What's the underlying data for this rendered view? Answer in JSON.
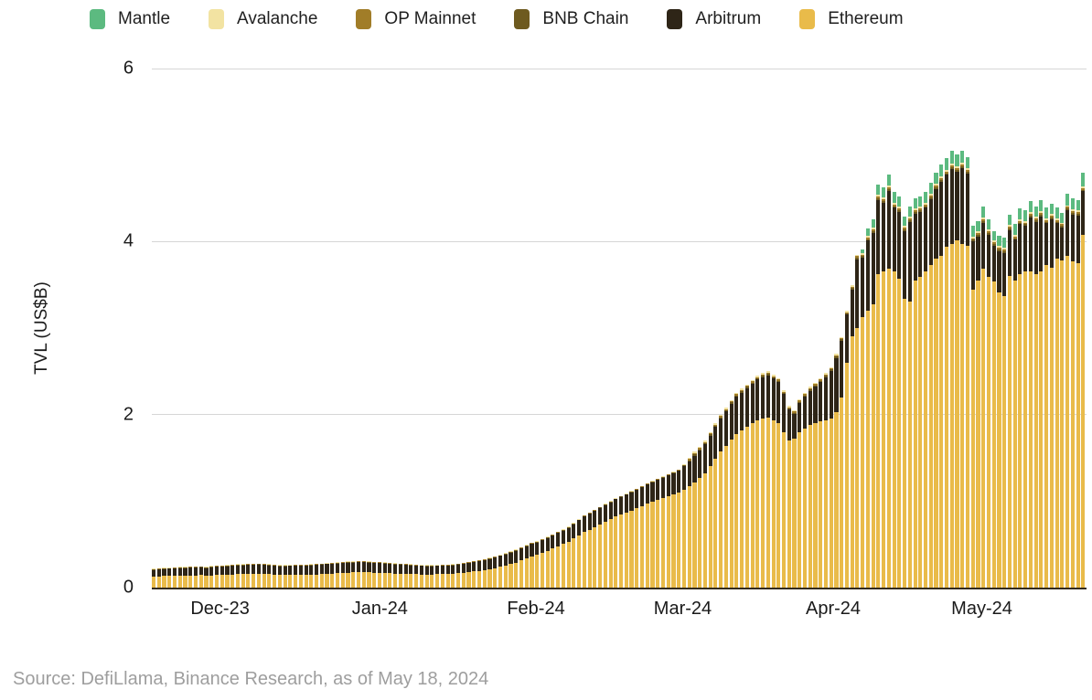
{
  "legend": {
    "items": [
      {
        "label": "Mantle",
        "color": "#5cba80"
      },
      {
        "label": "Avalanche",
        "color": "#f2e3a2"
      },
      {
        "label": "OP Mainnet",
        "color": "#a17d28"
      },
      {
        "label": "BNB Chain",
        "color": "#6e5a1f"
      },
      {
        "label": "Arbitrum",
        "color": "#2e2517"
      },
      {
        "label": "Ethereum",
        "color": "#e9bb4a"
      }
    ]
  },
  "source_note": "Source: DefiLlama, Binance Research, as of May 18, 2024",
  "chart_data": {
    "type": "bar",
    "stacked": true,
    "title": "",
    "xlabel": "",
    "ylabel": "TVL (US$B)",
    "ylim": [
      0,
      6
    ],
    "yticks": [
      0,
      2,
      4,
      6
    ],
    "grid": "horizontal",
    "legend_position": "top",
    "x_axis": {
      "granularity": "daily",
      "start": "2023-11-20",
      "end": "2024-05-18",
      "tick_labels": [
        "Dec-23",
        "Jan-24",
        "Feb-24",
        "Mar-24",
        "Apr-24",
        "May-24"
      ]
    },
    "stack_order_bottom_to_top": [
      "Ethereum",
      "Arbitrum",
      "BNB Chain",
      "OP Mainnet",
      "Avalanche",
      "Mantle"
    ],
    "series": [
      {
        "name": "Ethereum",
        "color": "#e9bb4a",
        "values": [
          0.13,
          0.132,
          0.134,
          0.136,
          0.138,
          0.14,
          0.14,
          0.141,
          0.142,
          0.143,
          0.138,
          0.14,
          0.143,
          0.146,
          0.149,
          0.152,
          0.155,
          0.156,
          0.158,
          0.159,
          0.16,
          0.157,
          0.155,
          0.152,
          0.15,
          0.15,
          0.15,
          0.15,
          0.15,
          0.15,
          0.15,
          0.153,
          0.157,
          0.16,
          0.163,
          0.167,
          0.17,
          0.172,
          0.175,
          0.177,
          0.18,
          0.175,
          0.17,
          0.168,
          0.166,
          0.164,
          0.162,
          0.16,
          0.158,
          0.156,
          0.154,
          0.152,
          0.15,
          0.152,
          0.154,
          0.156,
          0.158,
          0.16,
          0.167,
          0.173,
          0.18,
          0.187,
          0.193,
          0.2,
          0.213,
          0.227,
          0.24,
          0.257,
          0.273,
          0.29,
          0.312,
          0.335,
          0.357,
          0.38,
          0.403,
          0.427,
          0.45,
          0.477,
          0.503,
          0.53,
          0.567,
          0.603,
          0.64,
          0.67,
          0.7,
          0.73,
          0.76,
          0.79,
          0.82,
          0.843,
          0.867,
          0.89,
          0.917,
          0.943,
          0.97,
          0.993,
          1.017,
          1.04,
          1.06,
          1.08,
          1.1,
          1.135,
          1.17,
          1.22,
          1.27,
          1.32,
          1.4,
          1.49,
          1.57,
          1.64,
          1.71,
          1.78,
          1.82,
          1.86,
          1.9,
          1.93,
          1.95,
          1.97,
          1.93,
          1.9,
          1.8,
          1.7,
          1.72,
          1.8,
          1.84,
          1.88,
          1.9,
          1.92,
          1.93,
          1.95,
          2.03,
          2.2,
          2.6,
          2.9,
          3.0,
          3.13,
          3.2,
          3.27,
          3.62,
          3.66,
          3.69,
          3.66,
          3.57,
          3.34,
          3.31,
          3.55,
          3.59,
          3.66,
          3.73,
          3.8,
          3.83,
          3.94,
          3.97,
          4.01,
          3.97,
          3.95,
          3.44,
          3.55,
          3.69,
          3.59,
          3.54,
          3.41,
          3.37,
          3.6,
          3.55,
          3.62,
          3.66,
          3.66,
          3.62,
          3.65,
          3.73,
          3.7,
          3.8,
          3.78,
          3.83,
          3.77,
          3.75,
          4.08
        ]
      },
      {
        "name": "Arbitrum",
        "color": "#2e2517",
        "values": [
          0.075,
          0.078,
          0.081,
          0.081,
          0.083,
          0.085,
          0.087,
          0.088,
          0.089,
          0.09,
          0.087,
          0.095,
          0.096,
          0.097,
          0.098,
          0.099,
          0.1,
          0.102,
          0.102,
          0.104,
          0.105,
          0.103,
          0.1,
          0.098,
          0.095,
          0.097,
          0.099,
          0.101,
          0.102,
          0.103,
          0.105,
          0.107,
          0.108,
          0.11,
          0.112,
          0.113,
          0.115,
          0.115,
          0.115,
          0.116,
          0.115,
          0.115,
          0.115,
          0.113,
          0.111,
          0.109,
          0.107,
          0.105,
          0.103,
          0.101,
          0.099,
          0.097,
          0.095,
          0.095,
          0.095,
          0.095,
          0.095,
          0.095,
          0.098,
          0.102,
          0.105,
          0.108,
          0.112,
          0.115,
          0.118,
          0.121,
          0.125,
          0.128,
          0.132,
          0.135,
          0.14,
          0.145,
          0.148,
          0.14,
          0.144,
          0.146,
          0.15,
          0.153,
          0.157,
          0.16,
          0.166,
          0.174,
          0.18,
          0.183,
          0.187,
          0.19,
          0.193,
          0.197,
          0.2,
          0.204,
          0.206,
          0.21,
          0.213,
          0.217,
          0.22,
          0.224,
          0.226,
          0.23,
          0.237,
          0.243,
          0.25,
          0.275,
          0.285,
          0.305,
          0.315,
          0.335,
          0.355,
          0.365,
          0.385,
          0.395,
          0.415,
          0.425,
          0.435,
          0.445,
          0.455,
          0.475,
          0.485,
          0.485,
          0.485,
          0.475,
          0.435,
          0.355,
          0.285,
          0.335,
          0.365,
          0.395,
          0.425,
          0.455,
          0.505,
          0.555,
          0.625,
          0.655,
          0.555,
          0.54,
          0.79,
          0.68,
          0.81,
          0.83,
          0.86,
          0.79,
          0.9,
          0.73,
          0.77,
          0.78,
          0.92,
          0.77,
          0.75,
          0.73,
          0.76,
          0.81,
          0.86,
          0.83,
          0.87,
          0.8,
          0.88,
          0.84,
          0.56,
          0.51,
          0.53,
          0.49,
          0.41,
          0.48,
          0.5,
          0.53,
          0.47,
          0.58,
          0.52,
          0.62,
          0.61,
          0.64,
          0.48,
          0.56,
          0.41,
          0.38,
          0.53,
          0.54,
          0.55,
          0.5
        ]
      },
      {
        "name": "BNB Chain",
        "color": "#6e5a1f",
        "values": [
          0.005,
          0.005,
          0.005,
          0.005,
          0.005,
          0.005,
          0.005,
          0.005,
          0.005,
          0.005,
          0.005,
          0.005,
          0.005,
          0.005,
          0.005,
          0.005,
          0.005,
          0.005,
          0.005,
          0.005,
          0.005,
          0.005,
          0.005,
          0.005,
          0.005,
          0.005,
          0.005,
          0.005,
          0.005,
          0.005,
          0.005,
          0.005,
          0.005,
          0.005,
          0.005,
          0.005,
          0.005,
          0.005,
          0.005,
          0.005,
          0.005,
          0.005,
          0.005,
          0.005,
          0.005,
          0.005,
          0.005,
          0.005,
          0.005,
          0.005,
          0.005,
          0.005,
          0.005,
          0.005,
          0.005,
          0.005,
          0.005,
          0.005,
          0.005,
          0.005,
          0.005,
          0.005,
          0.005,
          0.005,
          0.005,
          0.005,
          0.005,
          0.005,
          0.005,
          0.005,
          0.005,
          0.005,
          0.005,
          0.005,
          0.005,
          0.005,
          0.005,
          0.005,
          0.005,
          0.005,
          0.005,
          0.005,
          0.005,
          0.005,
          0.005,
          0.005,
          0.005,
          0.005,
          0.005,
          0.005,
          0.005,
          0.005,
          0.005,
          0.005,
          0.005,
          0.005,
          0.005,
          0.005,
          0.005,
          0.005,
          0.005,
          0.005,
          0.015,
          0.015,
          0.015,
          0.015,
          0.015,
          0.015,
          0.015,
          0.015,
          0.015,
          0.015,
          0.015,
          0.015,
          0.015,
          0.015,
          0.015,
          0.015,
          0.015,
          0.015,
          0.015,
          0.015,
          0.015,
          0.015,
          0.015,
          0.015,
          0.015,
          0.015,
          0.015,
          0.015,
          0.015,
          0.015,
          0.015,
          0.02,
          0.02,
          0.02,
          0.02,
          0.02,
          0.02,
          0.02,
          0.02,
          0.02,
          0.02,
          0.02,
          0.02,
          0.02,
          0.02,
          0.02,
          0.02,
          0.02,
          0.02,
          0.02,
          0.02,
          0.02,
          0.02,
          0.02,
          0.02,
          0.02,
          0.02,
          0.02,
          0.02,
          0.02,
          0.02,
          0.02,
          0.02,
          0.02,
          0.02,
          0.02,
          0.02,
          0.02,
          0.02,
          0.02,
          0.02,
          0.02,
          0.02,
          0.02,
          0.02,
          0.02
        ]
      },
      {
        "name": "OP Mainnet",
        "color": "#a17d28",
        "values": [
          0.005,
          0.005,
          0.005,
          0.005,
          0.005,
          0.005,
          0.005,
          0.005,
          0.005,
          0.005,
          0.005,
          0.005,
          0.005,
          0.005,
          0.005,
          0.005,
          0.005,
          0.005,
          0.005,
          0.005,
          0.005,
          0.005,
          0.005,
          0.005,
          0.005,
          0.005,
          0.005,
          0.005,
          0.005,
          0.005,
          0.005,
          0.005,
          0.005,
          0.005,
          0.005,
          0.005,
          0.005,
          0.005,
          0.005,
          0.005,
          0.005,
          0.005,
          0.005,
          0.005,
          0.005,
          0.005,
          0.005,
          0.005,
          0.005,
          0.005,
          0.005,
          0.005,
          0.005,
          0.005,
          0.005,
          0.005,
          0.005,
          0.005,
          0.005,
          0.005,
          0.005,
          0.005,
          0.005,
          0.005,
          0.005,
          0.005,
          0.005,
          0.005,
          0.005,
          0.005,
          0.005,
          0.005,
          0.005,
          0.005,
          0.005,
          0.005,
          0.005,
          0.005,
          0.005,
          0.005,
          0.005,
          0.005,
          0.005,
          0.005,
          0.005,
          0.005,
          0.005,
          0.005,
          0.005,
          0.005,
          0.005,
          0.005,
          0.005,
          0.005,
          0.005,
          0.005,
          0.005,
          0.005,
          0.005,
          0.005,
          0.005,
          0.005,
          0.015,
          0.015,
          0.015,
          0.015,
          0.015,
          0.015,
          0.015,
          0.015,
          0.015,
          0.015,
          0.015,
          0.015,
          0.015,
          0.015,
          0.015,
          0.015,
          0.015,
          0.015,
          0.015,
          0.015,
          0.015,
          0.015,
          0.015,
          0.015,
          0.015,
          0.015,
          0.015,
          0.015,
          0.015,
          0.015,
          0.015,
          0.02,
          0.02,
          0.02,
          0.02,
          0.02,
          0.02,
          0.02,
          0.02,
          0.02,
          0.02,
          0.02,
          0.02,
          0.02,
          0.02,
          0.02,
          0.02,
          0.02,
          0.02,
          0.02,
          0.02,
          0.02,
          0.02,
          0.02,
          0.02,
          0.02,
          0.02,
          0.02,
          0.02,
          0.02,
          0.02,
          0.02,
          0.02,
          0.02,
          0.02,
          0.02,
          0.02,
          0.02,
          0.02,
          0.02,
          0.02,
          0.02,
          0.02,
          0.02,
          0.02,
          0.02
        ]
      },
      {
        "name": "Avalanche",
        "color": "#f2e3a2",
        "values": [
          0.005,
          0.005,
          0.005,
          0.005,
          0.005,
          0.005,
          0.005,
          0.005,
          0.005,
          0.005,
          0.005,
          0.005,
          0.005,
          0.005,
          0.005,
          0.005,
          0.005,
          0.005,
          0.005,
          0.005,
          0.005,
          0.005,
          0.005,
          0.005,
          0.005,
          0.005,
          0.005,
          0.005,
          0.005,
          0.005,
          0.005,
          0.005,
          0.005,
          0.005,
          0.005,
          0.005,
          0.005,
          0.005,
          0.005,
          0.005,
          0.005,
          0.005,
          0.005,
          0.005,
          0.005,
          0.005,
          0.005,
          0.005,
          0.005,
          0.005,
          0.005,
          0.005,
          0.005,
          0.005,
          0.005,
          0.005,
          0.005,
          0.005,
          0.005,
          0.005,
          0.005,
          0.005,
          0.005,
          0.005,
          0.005,
          0.005,
          0.005,
          0.005,
          0.005,
          0.005,
          0.005,
          0.005,
          0.005,
          0.005,
          0.005,
          0.005,
          0.005,
          0.005,
          0.005,
          0.005,
          0.005,
          0.005,
          0.005,
          0.005,
          0.005,
          0.005,
          0.005,
          0.005,
          0.005,
          0.005,
          0.005,
          0.005,
          0.005,
          0.005,
          0.005,
          0.005,
          0.005,
          0.005,
          0.005,
          0.005,
          0.005,
          0.005,
          0.015,
          0.015,
          0.015,
          0.015,
          0.015,
          0.015,
          0.015,
          0.015,
          0.015,
          0.015,
          0.015,
          0.015,
          0.015,
          0.015,
          0.015,
          0.015,
          0.015,
          0.015,
          0.015,
          0.015,
          0.015,
          0.015,
          0.015,
          0.015,
          0.015,
          0.015,
          0.015,
          0.015,
          0.015,
          0.015,
          0.015,
          0.02,
          0.02,
          0.02,
          0.02,
          0.02,
          0.02,
          0.02,
          0.02,
          0.02,
          0.02,
          0.02,
          0.02,
          0.02,
          0.02,
          0.02,
          0.02,
          0.02,
          0.02,
          0.02,
          0.02,
          0.02,
          0.02,
          0.02,
          0.02,
          0.02,
          0.02,
          0.02,
          0.02,
          0.02,
          0.02,
          0.02,
          0.02,
          0.02,
          0.02,
          0.02,
          0.02,
          0.02,
          0.02,
          0.02,
          0.02,
          0.02,
          0.02,
          0.02,
          0.02,
          0.02
        ]
      },
      {
        "name": "Mantle",
        "color": "#5cba80",
        "values": [
          0,
          0,
          0,
          0,
          0,
          0,
          0,
          0,
          0,
          0,
          0,
          0,
          0,
          0,
          0,
          0,
          0,
          0,
          0,
          0,
          0,
          0,
          0,
          0,
          0,
          0,
          0,
          0,
          0,
          0,
          0,
          0,
          0,
          0,
          0,
          0,
          0,
          0,
          0,
          0,
          0,
          0,
          0,
          0,
          0,
          0,
          0,
          0,
          0,
          0,
          0,
          0,
          0,
          0,
          0,
          0,
          0,
          0,
          0,
          0,
          0,
          0,
          0,
          0,
          0,
          0,
          0,
          0,
          0,
          0,
          0,
          0,
          0,
          0,
          0,
          0,
          0,
          0,
          0,
          0,
          0,
          0,
          0,
          0,
          0,
          0,
          0,
          0,
          0,
          0,
          0,
          0,
          0,
          0,
          0,
          0,
          0,
          0,
          0,
          0,
          0,
          0,
          0,
          0,
          0,
          0,
          0,
          0,
          0,
          0,
          0,
          0,
          0,
          0,
          0,
          0,
          0,
          0,
          0,
          0,
          0,
          0,
          0,
          0,
          0,
          0,
          0,
          0,
          0,
          0,
          0,
          0,
          0,
          0,
          0,
          0.04,
          0.08,
          0.1,
          0.12,
          0.12,
          0.13,
          0.12,
          0.12,
          0.11,
          0.12,
          0.12,
          0.12,
          0.12,
          0.13,
          0.13,
          0.14,
          0.14,
          0.15,
          0.14,
          0.14,
          0.13,
          0.12,
          0.12,
          0.12,
          0.12,
          0.11,
          0.12,
          0.12,
          0.12,
          0.12,
          0.12,
          0.12,
          0.13,
          0.12,
          0.13,
          0.12,
          0.12,
          0.12,
          0.11,
          0.13,
          0.13,
          0.12,
          0.16
        ]
      }
    ]
  }
}
